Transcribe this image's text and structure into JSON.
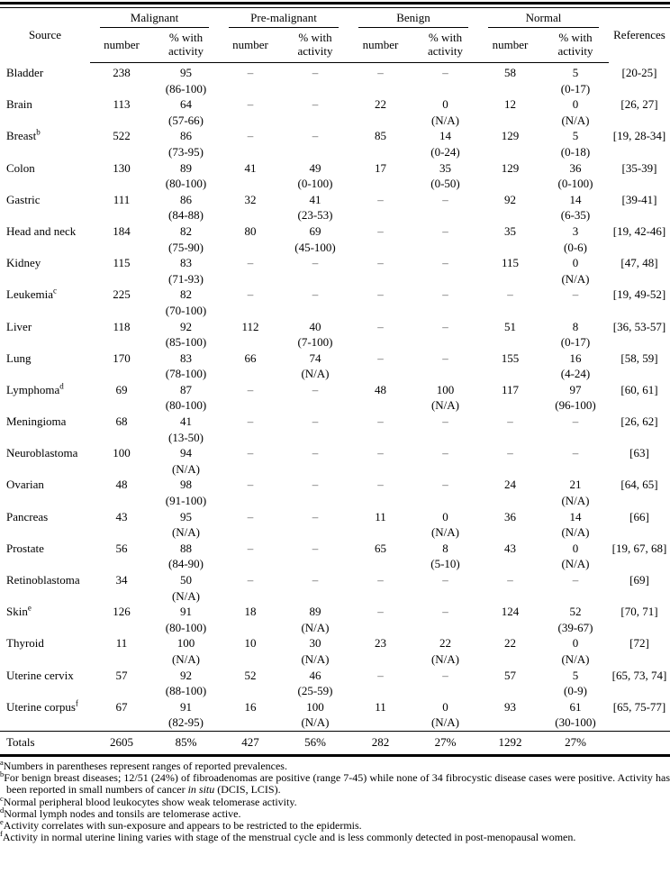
{
  "table": {
    "source_header": "Source",
    "references_header": "References",
    "groups": [
      "Malignant",
      "Pre-malignant",
      "Benign",
      "Normal"
    ],
    "sub_headers": [
      "number",
      "% with activity"
    ],
    "rows": [
      {
        "source": "Bladder",
        "sup": "",
        "cells": [
          [
            "238",
            ""
          ],
          [
            "95",
            "(86-100)"
          ],
          [
            "–",
            ""
          ],
          [
            "–",
            ""
          ],
          [
            "–",
            ""
          ],
          [
            "–",
            ""
          ],
          [
            "58",
            ""
          ],
          [
            "5",
            "(0-17)"
          ]
        ],
        "refs": "[20-25]"
      },
      {
        "source": "Brain",
        "sup": "",
        "cells": [
          [
            "113",
            ""
          ],
          [
            "64",
            "(57-66)"
          ],
          [
            "–",
            ""
          ],
          [
            "–",
            ""
          ],
          [
            "22",
            ""
          ],
          [
            "0",
            "(N/A)"
          ],
          [
            "12",
            ""
          ],
          [
            "0",
            "(N/A)"
          ]
        ],
        "refs": "[26, 27]"
      },
      {
        "source": "Breast",
        "sup": "b",
        "cells": [
          [
            "522",
            ""
          ],
          [
            "86",
            "(73-95)"
          ],
          [
            "–",
            ""
          ],
          [
            "–",
            ""
          ],
          [
            "85",
            ""
          ],
          [
            "14",
            "(0-24)"
          ],
          [
            "129",
            ""
          ],
          [
            "5",
            "(0-18)"
          ]
        ],
        "refs": "[19, 28-34]"
      },
      {
        "source": "Colon",
        "sup": "",
        "cells": [
          [
            "130",
            ""
          ],
          [
            "89",
            "(80-100)"
          ],
          [
            "41",
            ""
          ],
          [
            "49",
            "(0-100)"
          ],
          [
            "17",
            ""
          ],
          [
            "35",
            "(0-50)"
          ],
          [
            "129",
            ""
          ],
          [
            "36",
            "(0-100)"
          ]
        ],
        "refs": "[35-39]"
      },
      {
        "source": "Gastric",
        "sup": "",
        "cells": [
          [
            "111",
            ""
          ],
          [
            "86",
            "(84-88)"
          ],
          [
            "32",
            ""
          ],
          [
            "41",
            "(23-53)"
          ],
          [
            "–",
            ""
          ],
          [
            "–",
            ""
          ],
          [
            "92",
            ""
          ],
          [
            "14",
            "(6-35)"
          ]
        ],
        "refs": "[39-41]"
      },
      {
        "source": "Head and neck",
        "sup": "",
        "cells": [
          [
            "184",
            ""
          ],
          [
            "82",
            "(75-90)"
          ],
          [
            "80",
            ""
          ],
          [
            "69",
            "(45-100)"
          ],
          [
            "–",
            ""
          ],
          [
            "–",
            ""
          ],
          [
            "35",
            ""
          ],
          [
            "3",
            "(0-6)"
          ]
        ],
        "refs": "[19, 42-46]"
      },
      {
        "source": "Kidney",
        "sup": "",
        "cells": [
          [
            "115",
            ""
          ],
          [
            "83",
            "(71-93)"
          ],
          [
            "–",
            ""
          ],
          [
            "–",
            ""
          ],
          [
            "–",
            ""
          ],
          [
            "–",
            ""
          ],
          [
            "115",
            ""
          ],
          [
            "0",
            "(N/A)"
          ]
        ],
        "refs": "[47, 48]"
      },
      {
        "source": "Leukemia",
        "sup": "c",
        "cells": [
          [
            "225",
            ""
          ],
          [
            "82",
            "(70-100)"
          ],
          [
            "–",
            ""
          ],
          [
            "–",
            ""
          ],
          [
            "–",
            ""
          ],
          [
            "–",
            ""
          ],
          [
            "–",
            ""
          ],
          [
            "–",
            ""
          ]
        ],
        "refs": "[19, 49-52]"
      },
      {
        "source": "Liver",
        "sup": "",
        "cells": [
          [
            "118",
            ""
          ],
          [
            "92",
            "(85-100)"
          ],
          [
            "112",
            ""
          ],
          [
            "40",
            "(7-100)"
          ],
          [
            "–",
            ""
          ],
          [
            "–",
            ""
          ],
          [
            "51",
            ""
          ],
          [
            "8",
            "(0-17)"
          ]
        ],
        "refs": "[36, 53-57]"
      },
      {
        "source": "Lung",
        "sup": "",
        "cells": [
          [
            "170",
            ""
          ],
          [
            "83",
            "(78-100)"
          ],
          [
            "66",
            ""
          ],
          [
            "74",
            "(N/A)"
          ],
          [
            "–",
            ""
          ],
          [
            "–",
            ""
          ],
          [
            "155",
            ""
          ],
          [
            "16",
            "(4-24)"
          ]
        ],
        "refs": "[58, 59]"
      },
      {
        "source": "Lymphoma",
        "sup": "d",
        "cells": [
          [
            "69",
            ""
          ],
          [
            "87",
            "(80-100)"
          ],
          [
            "–",
            ""
          ],
          [
            "–",
            ""
          ],
          [
            "48",
            ""
          ],
          [
            "100",
            "(N/A)"
          ],
          [
            "117",
            ""
          ],
          [
            "97",
            "(96-100)"
          ]
        ],
        "refs": "[60, 61]"
      },
      {
        "source": "Meningioma",
        "sup": "",
        "cells": [
          [
            "68",
            ""
          ],
          [
            "41",
            "(13-50)"
          ],
          [
            "–",
            ""
          ],
          [
            "–",
            ""
          ],
          [
            "–",
            ""
          ],
          [
            "–",
            ""
          ],
          [
            "–",
            ""
          ],
          [
            "–",
            ""
          ]
        ],
        "refs": "[26, 62]"
      },
      {
        "source": "Neuroblastoma",
        "sup": "",
        "cells": [
          [
            "100",
            ""
          ],
          [
            "94",
            "(N/A)"
          ],
          [
            "–",
            ""
          ],
          [
            "–",
            ""
          ],
          [
            "–",
            ""
          ],
          [
            "–",
            ""
          ],
          [
            "–",
            ""
          ],
          [
            "–",
            ""
          ]
        ],
        "refs": "[63]"
      },
      {
        "source": "Ovarian",
        "sup": "",
        "cells": [
          [
            "48",
            ""
          ],
          [
            "98",
            "(91-100)"
          ],
          [
            "–",
            ""
          ],
          [
            "–",
            ""
          ],
          [
            "–",
            ""
          ],
          [
            "–",
            ""
          ],
          [
            "24",
            ""
          ],
          [
            "21",
            "(N/A)"
          ]
        ],
        "refs": "[64, 65]"
      },
      {
        "source": "Pancreas",
        "sup": "",
        "cells": [
          [
            "43",
            ""
          ],
          [
            "95",
            "(N/A)"
          ],
          [
            "–",
            ""
          ],
          [
            "–",
            ""
          ],
          [
            "11",
            ""
          ],
          [
            "0",
            "(N/A)"
          ],
          [
            "36",
            ""
          ],
          [
            "14",
            "(N/A)"
          ]
        ],
        "refs": "[66]"
      },
      {
        "source": "Prostate",
        "sup": "",
        "cells": [
          [
            "56",
            ""
          ],
          [
            "88",
            "(84-90)"
          ],
          [
            "–",
            ""
          ],
          [
            "–",
            ""
          ],
          [
            "65",
            ""
          ],
          [
            "8",
            "(5-10)"
          ],
          [
            "43",
            ""
          ],
          [
            "0",
            "(N/A)"
          ]
        ],
        "refs": "[19, 67, 68]"
      },
      {
        "source": "Retinoblastoma",
        "sup": "",
        "cells": [
          [
            "34",
            ""
          ],
          [
            "50",
            "(N/A)"
          ],
          [
            "–",
            ""
          ],
          [
            "–",
            ""
          ],
          [
            "–",
            ""
          ],
          [
            "–",
            ""
          ],
          [
            "–",
            ""
          ],
          [
            "–",
            ""
          ]
        ],
        "refs": "[69]"
      },
      {
        "source": "Skin",
        "sup": "e",
        "cells": [
          [
            "126",
            ""
          ],
          [
            "91",
            "(80-100)"
          ],
          [
            "18",
            ""
          ],
          [
            "89",
            "(N/A)"
          ],
          [
            "–",
            ""
          ],
          [
            "–",
            ""
          ],
          [
            "124",
            ""
          ],
          [
            "52",
            "(39-67)"
          ]
        ],
        "refs": "[70, 71]"
      },
      {
        "source": "Thyroid",
        "sup": "",
        "cells": [
          [
            "11",
            ""
          ],
          [
            "100",
            "(N/A)"
          ],
          [
            "10",
            ""
          ],
          [
            "30",
            "(N/A)"
          ],
          [
            "23",
            ""
          ],
          [
            "22",
            "(N/A)"
          ],
          [
            "22",
            ""
          ],
          [
            "0",
            "(N/A)"
          ]
        ],
        "refs": "[72]"
      },
      {
        "source": "Uterine cervix",
        "sup": "",
        "cells": [
          [
            "57",
            ""
          ],
          [
            "92",
            "(88-100)"
          ],
          [
            "52",
            ""
          ],
          [
            "46",
            "(25-59)"
          ],
          [
            "–",
            ""
          ],
          [
            "–",
            ""
          ],
          [
            "57",
            ""
          ],
          [
            "5",
            "(0-9)"
          ]
        ],
        "refs": "[65, 73, 74]"
      },
      {
        "source": "Uterine corpus",
        "sup": "f",
        "cells": [
          [
            "67",
            ""
          ],
          [
            "91",
            "(82-95)"
          ],
          [
            "16",
            ""
          ],
          [
            "100",
            "(N/A)"
          ],
          [
            "11",
            ""
          ],
          [
            "0",
            "(N/A)"
          ],
          [
            "93",
            ""
          ],
          [
            "61",
            "(30-100)"
          ]
        ],
        "refs": "[65, 75-77]"
      }
    ],
    "totals": {
      "label": "Totals",
      "cells": [
        "2605",
        "85%",
        "427",
        "56%",
        "282",
        "27%",
        "1292",
        "27%"
      ],
      "refs": ""
    }
  },
  "footnotes": [
    {
      "sup": "a",
      "parts": [
        {
          "t": "Numbers in parentheses represent ranges of reported prevalences."
        }
      ]
    },
    {
      "sup": "b",
      "parts": [
        {
          "t": "For benign breast diseases; 12/51 (24%) of fibroadenomas are positive (range 7-45) while none of 34 fibrocystic disease cases were positive. Activity has been reported in small numbers of cancer "
        },
        {
          "t": "in situ",
          "i": true
        },
        {
          "t": " (DCIS, LCIS)."
        }
      ]
    },
    {
      "sup": "c",
      "parts": [
        {
          "t": "Normal peripheral blood leukocytes show weak telomerase activity."
        }
      ]
    },
    {
      "sup": "d",
      "parts": [
        {
          "t": "Normal lymph nodes and tonsils are telomerase active."
        }
      ]
    },
    {
      "sup": "e",
      "parts": [
        {
          "t": "Activity correlates with sun-exposure and appears to be restricted to the epidermis."
        }
      ]
    },
    {
      "sup": "f",
      "parts": [
        {
          "t": "Activity in normal uterine lining varies with stage of the menstrual cycle and is less commonly detected in post-menopausal women."
        }
      ]
    }
  ]
}
